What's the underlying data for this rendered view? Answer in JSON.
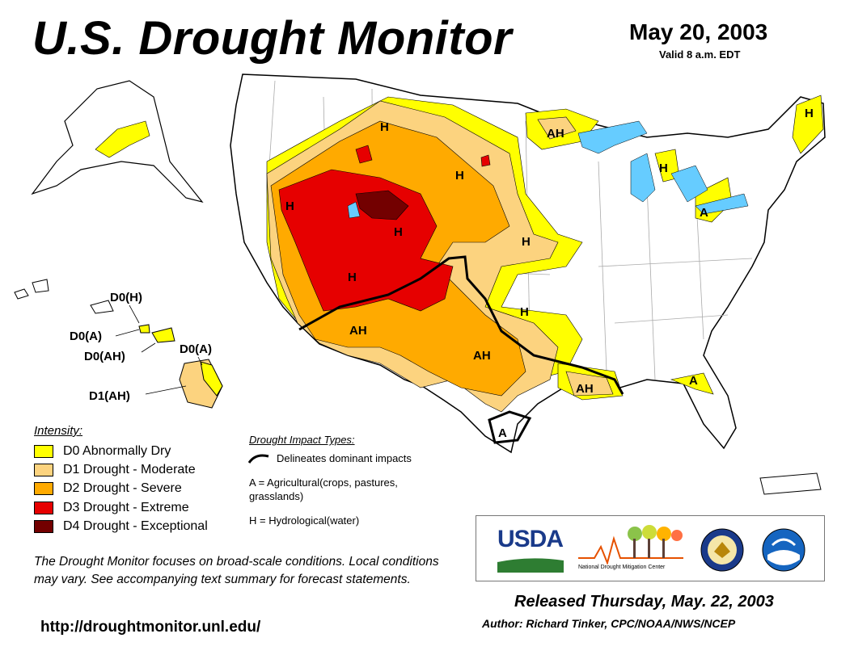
{
  "title": "U.S. Drought Monitor",
  "date": "May 20, 2003",
  "valid": "Valid 8 a.m. EDT",
  "colors": {
    "D0": "#ffff00",
    "D1": "#fcd37f",
    "D2": "#ffaa00",
    "D3": "#e60000",
    "D4": "#730000",
    "water": "#66ccff"
  },
  "legend": {
    "title": "Intensity:",
    "items": [
      {
        "label": "D0 Abnormally Dry",
        "color": "#ffff00"
      },
      {
        "label": "D1 Drought - Moderate",
        "color": "#fcd37f"
      },
      {
        "label": "D2 Drought - Severe",
        "color": "#ffaa00"
      },
      {
        "label": "D3 Drought - Extreme",
        "color": "#e60000"
      },
      {
        "label": "D4 Drought - Exceptional",
        "color": "#730000"
      }
    ]
  },
  "impact_types": {
    "title": "Drought Impact Types:",
    "line_label": "Delineates dominant impacts",
    "a_label": "A = Agricultural(crops, pastures, grasslands)",
    "h_label": "H = Hydrological(water)"
  },
  "map_labels": [
    {
      "text": "H"
    },
    {
      "text": "AH"
    },
    {
      "text": "H"
    },
    {
      "text": "H"
    },
    {
      "text": "H"
    },
    {
      "text": "H"
    },
    {
      "text": "H"
    },
    {
      "text": "A"
    },
    {
      "text": "H"
    },
    {
      "text": "H"
    },
    {
      "text": "AH"
    },
    {
      "text": "H"
    },
    {
      "text": "AH"
    },
    {
      "text": "AH"
    },
    {
      "text": "A"
    },
    {
      "text": "A"
    }
  ],
  "hawaii_labels": [
    {
      "text": "D0(H)"
    },
    {
      "text": "D0(A)"
    },
    {
      "text": "D0(AH)"
    },
    {
      "text": "D0(A)"
    },
    {
      "text": "D1(AH)"
    }
  ],
  "note": "The Drought Monitor focuses on broad-scale conditions. Local conditions may vary. See accompanying text summary for forecast statements.",
  "url": "http://droughtmonitor.unl.edu/",
  "logos": {
    "usda": "USDA",
    "ndmc": "National Drought Mitigation Center"
  },
  "released": "Released Thursday, May. 22, 2003",
  "author": "Author: Richard Tinker, CPC/NOAA/NWS/NCEP"
}
